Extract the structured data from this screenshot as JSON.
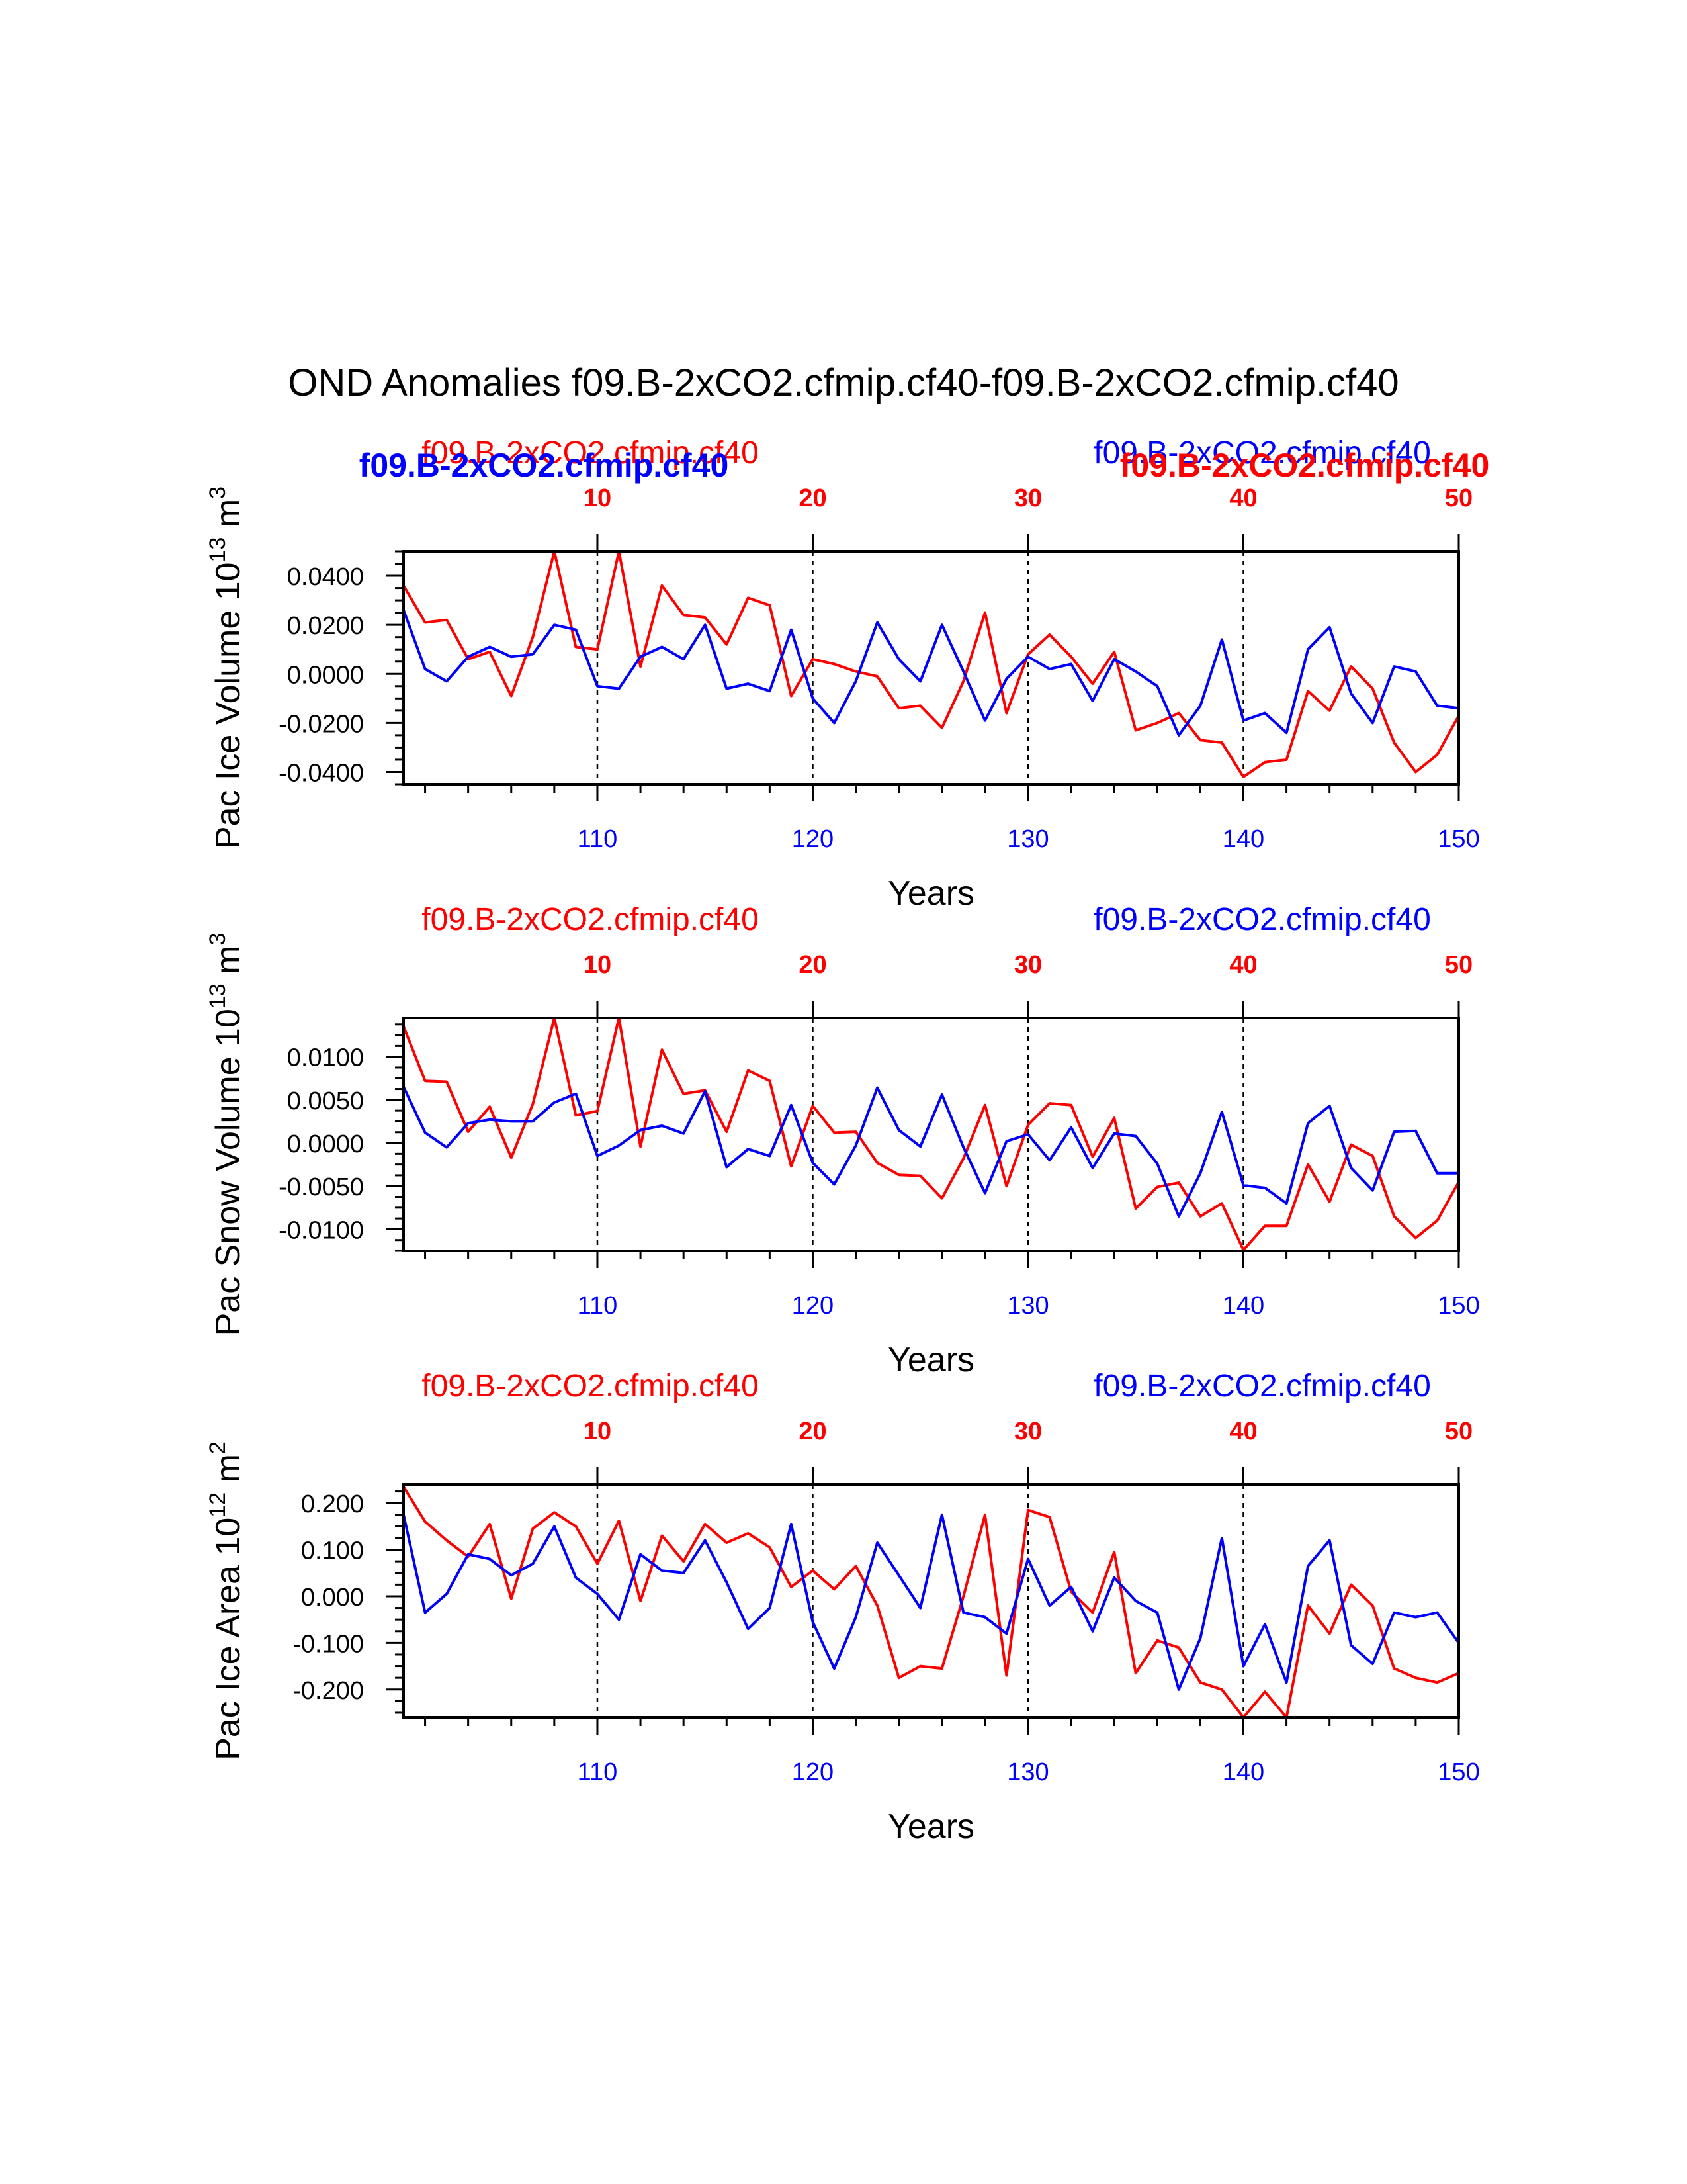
{
  "page_title": "OND Anomalies f09.B-2xCO2.cfmip.cf40-f09.B-2xCO2.cfmip.cf40",
  "colors": {
    "case1": "#ff0000",
    "case2": "#0000ff",
    "axis": "#000000"
  },
  "chart_data": [
    {
      "type": "line",
      "name": "pac-ice-volume",
      "title": "",
      "ylabel_main": "Pac Ice Volume 10",
      "ylabel_exp": "13",
      "ylabel_unit": " m",
      "ylabel_unit_exp": "3",
      "xlabel": "Years",
      "top_left_label": "f09.B-2xCO2.cfmip.cf40",
      "top_right_label": "f09.B-2xCO2.cfmip.cf40",
      "overlay_left_label": "f09.B-2xCO2.cfmip.cf40",
      "overlay_right_label": "f09.B-2xCO2.cfmip.cf40",
      "ylim": [
        -0.045,
        0.05
      ],
      "yticks": [
        -0.04,
        -0.02,
        0.0,
        0.02,
        0.04
      ],
      "ytick_labels": [
        "-0.0400",
        "-0.0200",
        "0.0000",
        "0.0200",
        "0.0400"
      ],
      "yminor_step": 0.005,
      "xlim_bottom": [
        101,
        150
      ],
      "xticks_bottom": [
        110,
        120,
        130,
        140,
        150
      ],
      "xlim_top": [
        1,
        50
      ],
      "xticks_top": [
        10,
        20,
        30,
        40,
        50
      ],
      "series": [
        {
          "name": "red-case",
          "color": "#ff0000",
          "x": [
            101,
            102,
            103,
            104,
            105,
            106,
            107,
            108,
            109,
            110,
            111,
            112,
            113,
            114,
            115,
            116,
            117,
            118,
            119,
            120,
            121,
            122,
            123,
            124,
            125,
            126,
            127,
            128,
            129,
            130,
            131,
            132,
            133,
            134,
            135,
            136,
            137,
            138,
            139,
            140,
            141,
            142,
            143,
            144,
            145,
            146,
            147,
            148,
            149,
            150
          ],
          "values": [
            0.036,
            0.021,
            0.022,
            0.006,
            0.009,
            -0.009,
            0.015,
            0.05,
            0.011,
            0.01,
            0.05,
            0.003,
            0.036,
            0.024,
            0.023,
            0.012,
            0.031,
            0.028,
            -0.009,
            0.006,
            0.004,
            0.001,
            -0.001,
            -0.014,
            -0.013,
            -0.022,
            -0.003,
            0.025,
            -0.016,
            0.008,
            0.016,
            0.007,
            -0.004,
            0.009,
            -0.023,
            -0.02,
            -0.016,
            -0.027,
            -0.028,
            -0.042,
            -0.036,
            -0.035,
            -0.007,
            -0.015,
            0.003,
            -0.006,
            -0.028,
            -0.04,
            -0.033,
            -0.017
          ]
        },
        {
          "name": "blue-case",
          "color": "#0000ff",
          "x": [
            101,
            102,
            103,
            104,
            105,
            106,
            107,
            108,
            109,
            110,
            111,
            112,
            113,
            114,
            115,
            116,
            117,
            118,
            119,
            120,
            121,
            122,
            123,
            124,
            125,
            126,
            127,
            128,
            129,
            130,
            131,
            132,
            133,
            134,
            135,
            136,
            137,
            138,
            139,
            140,
            141,
            142,
            143,
            144,
            145,
            146,
            147,
            148,
            149,
            150
          ],
          "values": [
            0.026,
            0.002,
            -0.003,
            0.007,
            0.011,
            0.007,
            0.008,
            0.02,
            0.018,
            -0.005,
            -0.006,
            0.007,
            0.011,
            0.006,
            0.02,
            -0.006,
            -0.004,
            -0.007,
            0.018,
            -0.01,
            -0.02,
            -0.003,
            0.021,
            0.006,
            -0.003,
            0.02,
            0.001,
            -0.019,
            -0.002,
            0.007,
            0.002,
            0.004,
            -0.011,
            0.006,
            0.001,
            -0.005,
            -0.025,
            -0.013,
            0.014,
            -0.019,
            -0.016,
            -0.024,
            0.01,
            0.019,
            -0.008,
            -0.02,
            0.003,
            0.001,
            -0.013,
            -0.014
          ]
        }
      ]
    },
    {
      "type": "line",
      "name": "pac-snow-volume",
      "title": "",
      "ylabel_main": "Pac Snow Volume 10",
      "ylabel_exp": "13",
      "ylabel_unit": " m",
      "ylabel_unit_exp": "3",
      "xlabel": "Years",
      "top_left_label": "f09.B-2xCO2.cfmip.cf40",
      "top_right_label": "f09.B-2xCO2.cfmip.cf40",
      "ylim": [
        -0.0125,
        0.0145
      ],
      "yticks": [
        -0.01,
        -0.005,
        0.0,
        0.005,
        0.01
      ],
      "ytick_labels": [
        "-0.0100",
        "-0.0050",
        "0.0000",
        "0.0050",
        "0.0100"
      ],
      "yminor_step": 0.00125,
      "xlim_bottom": [
        101,
        150
      ],
      "xticks_bottom": [
        110,
        120,
        130,
        140,
        150
      ],
      "xlim_top": [
        1,
        50
      ],
      "xticks_top": [
        10,
        20,
        30,
        40,
        50
      ],
      "series": [
        {
          "name": "red-case",
          "color": "#ff0000",
          "x": [
            101,
            102,
            103,
            104,
            105,
            106,
            107,
            108,
            109,
            110,
            111,
            112,
            113,
            114,
            115,
            116,
            117,
            118,
            119,
            120,
            121,
            122,
            123,
            124,
            125,
            126,
            127,
            128,
            129,
            130,
            131,
            132,
            133,
            134,
            135,
            136,
            137,
            138,
            139,
            140,
            141,
            142,
            143,
            144,
            145,
            146,
            147,
            148,
            149,
            150
          ],
          "values": [
            0.0135,
            0.0072,
            0.0071,
            0.0013,
            0.0042,
            -0.0017,
            0.0045,
            0.0145,
            0.0032,
            0.0037,
            0.0145,
            -0.0004,
            0.0108,
            0.0057,
            0.0061,
            0.0013,
            0.0084,
            0.0072,
            -0.0027,
            0.0043,
            0.0012,
            0.0013,
            -0.0023,
            -0.0037,
            -0.0038,
            -0.0064,
            -0.0018,
            0.0044,
            -0.005,
            0.0021,
            0.0046,
            0.0044,
            -0.0016,
            0.0029,
            -0.0076,
            -0.0051,
            -0.0046,
            -0.0085,
            -0.007,
            -0.0124,
            -0.0096,
            -0.0096,
            -0.0025,
            -0.0068,
            -0.0002,
            -0.0015,
            -0.0085,
            -0.011,
            -0.009,
            -0.0045
          ]
        },
        {
          "name": "blue-case",
          "color": "#0000ff",
          "x": [
            101,
            102,
            103,
            104,
            105,
            106,
            107,
            108,
            109,
            110,
            111,
            112,
            113,
            114,
            115,
            116,
            117,
            118,
            119,
            120,
            121,
            122,
            123,
            124,
            125,
            126,
            127,
            128,
            129,
            130,
            131,
            132,
            133,
            134,
            135,
            136,
            137,
            138,
            139,
            140,
            141,
            142,
            143,
            144,
            145,
            146,
            147,
            148,
            149,
            150
          ],
          "values": [
            0.0065,
            0.0012,
            -0.0005,
            0.0023,
            0.0027,
            0.0025,
            0.0025,
            0.0047,
            0.0057,
            -0.0015,
            -0.0003,
            0.0015,
            0.002,
            0.0011,
            0.006,
            -0.0028,
            -0.0007,
            -0.0015,
            0.0044,
            -0.0023,
            -0.0048,
            -0.0003,
            0.0064,
            0.0015,
            -0.0004,
            0.0056,
            -0.0005,
            -0.0058,
            0.0002,
            0.001,
            -0.002,
            0.0018,
            -0.0029,
            0.0011,
            0.0008,
            -0.0024,
            -0.0085,
            -0.0035,
            0.0036,
            -0.0049,
            -0.0052,
            -0.007,
            0.0023,
            0.0043,
            -0.0029,
            -0.0055,
            0.0013,
            0.0014,
            -0.0035,
            -0.0035
          ]
        }
      ]
    },
    {
      "type": "line",
      "name": "pac-ice-area",
      "title": "",
      "ylabel_main": "Pac Ice Area 10",
      "ylabel_exp": "12",
      "ylabel_unit": " m",
      "ylabel_unit_exp": "2",
      "xlabel": "Years",
      "top_left_label": "f09.B-2xCO2.cfmip.cf40",
      "top_right_label": "f09.B-2xCO2.cfmip.cf40",
      "ylim": [
        -0.26,
        0.24
      ],
      "yticks": [
        -0.2,
        -0.1,
        0.0,
        0.1,
        0.2
      ],
      "ytick_labels": [
        "-0.200",
        "-0.100",
        "0.000",
        "0.100",
        "0.200"
      ],
      "yminor_step": 0.025,
      "xlim_bottom": [
        101,
        150
      ],
      "xticks_bottom": [
        110,
        120,
        130,
        140,
        150
      ],
      "xlim_top": [
        1,
        50
      ],
      "xticks_top": [
        10,
        20,
        30,
        40,
        50
      ],
      "series": [
        {
          "name": "red-case",
          "color": "#ff0000",
          "x": [
            101,
            102,
            103,
            104,
            105,
            106,
            107,
            108,
            109,
            110,
            111,
            112,
            113,
            114,
            115,
            116,
            117,
            118,
            119,
            120,
            121,
            122,
            123,
            124,
            125,
            126,
            127,
            128,
            129,
            130,
            131,
            132,
            133,
            134,
            135,
            136,
            137,
            138,
            139,
            140,
            141,
            142,
            143,
            144,
            145,
            146,
            147,
            148,
            149,
            150
          ],
          "values": [
            0.235,
            0.16,
            0.12,
            0.085,
            0.155,
            -0.005,
            0.145,
            0.18,
            0.15,
            0.07,
            0.162,
            -0.01,
            0.13,
            0.075,
            0.155,
            0.115,
            0.135,
            0.105,
            0.02,
            0.055,
            0.015,
            0.065,
            -0.02,
            -0.175,
            -0.15,
            -0.155,
            0.0,
            0.175,
            -0.17,
            0.185,
            0.17,
            0.01,
            -0.035,
            0.095,
            -0.165,
            -0.095,
            -0.11,
            -0.185,
            -0.2,
            -0.26,
            -0.205,
            -0.26,
            -0.02,
            -0.08,
            0.025,
            -0.02,
            -0.155,
            -0.175,
            -0.185,
            -0.165
          ]
        },
        {
          "name": "blue-case",
          "color": "#0000ff",
          "x": [
            101,
            102,
            103,
            104,
            105,
            106,
            107,
            108,
            109,
            110,
            111,
            112,
            113,
            114,
            115,
            116,
            117,
            118,
            119,
            120,
            121,
            122,
            123,
            124,
            125,
            126,
            127,
            128,
            129,
            130,
            131,
            132,
            133,
            134,
            135,
            136,
            137,
            138,
            139,
            140,
            141,
            142,
            143,
            144,
            145,
            146,
            147,
            148,
            149,
            150
          ],
          "values": [
            0.175,
            -0.035,
            0.005,
            0.09,
            0.08,
            0.045,
            0.07,
            0.15,
            0.04,
            0.005,
            -0.05,
            0.09,
            0.055,
            0.05,
            0.12,
            0.03,
            -0.07,
            -0.025,
            0.155,
            -0.055,
            -0.155,
            -0.045,
            0.115,
            0.045,
            -0.025,
            0.175,
            -0.035,
            -0.045,
            -0.08,
            0.08,
            -0.02,
            0.02,
            -0.075,
            0.04,
            -0.01,
            -0.035,
            -0.2,
            -0.09,
            0.125,
            -0.15,
            -0.06,
            -0.185,
            0.065,
            0.12,
            -0.105,
            -0.145,
            -0.035,
            -0.045,
            -0.035,
            -0.1
          ]
        }
      ]
    }
  ]
}
